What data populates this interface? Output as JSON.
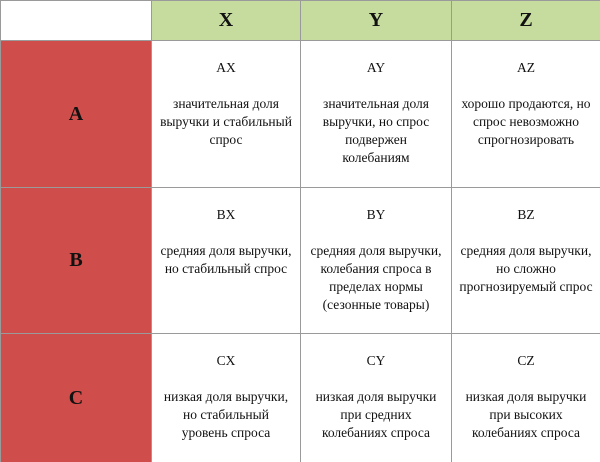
{
  "columns": [
    "X",
    "Y",
    "Z"
  ],
  "rows": [
    {
      "label": "A",
      "cells": [
        {
          "code": "AX",
          "desc": "значительная доля\nвыручки и стабильный\nспрос"
        },
        {
          "code": "AY",
          "desc": "значительная доля\nвыручки, но спрос\nподвержен\nколебаниям"
        },
        {
          "code": "AZ",
          "desc": "хорошо продаются, но\nспрос невозможно\nспрогнозировать"
        }
      ]
    },
    {
      "label": "B",
      "cells": [
        {
          "code": "BX",
          "desc": "средняя доля выручки,\nно стабильный спрос"
        },
        {
          "code": "BY",
          "desc": "средняя доля выручки,\nколебания спроса в\nпределах нормы\n(сезонные товары)"
        },
        {
          "code": "BZ",
          "desc": "средняя доля выручки,\nно сложно\nпрогнозируемый спрос"
        }
      ]
    },
    {
      "label": "C",
      "cells": [
        {
          "code": "CX",
          "desc": "низкая доля выручки,\nно стабильный\nуровень спроса"
        },
        {
          "code": "CY",
          "desc": "низкая доля выручки\nпри средних\nколебаниях спроса"
        },
        {
          "code": "CZ",
          "desc": "низкая доля выручки\nпри высоких\nколебаниях спроса"
        }
      ]
    }
  ],
  "colors": {
    "column_header_bg": "#c5dc9e",
    "row_header_bg": "#cf4e4b",
    "grid_line": "#9a9a9a"
  }
}
